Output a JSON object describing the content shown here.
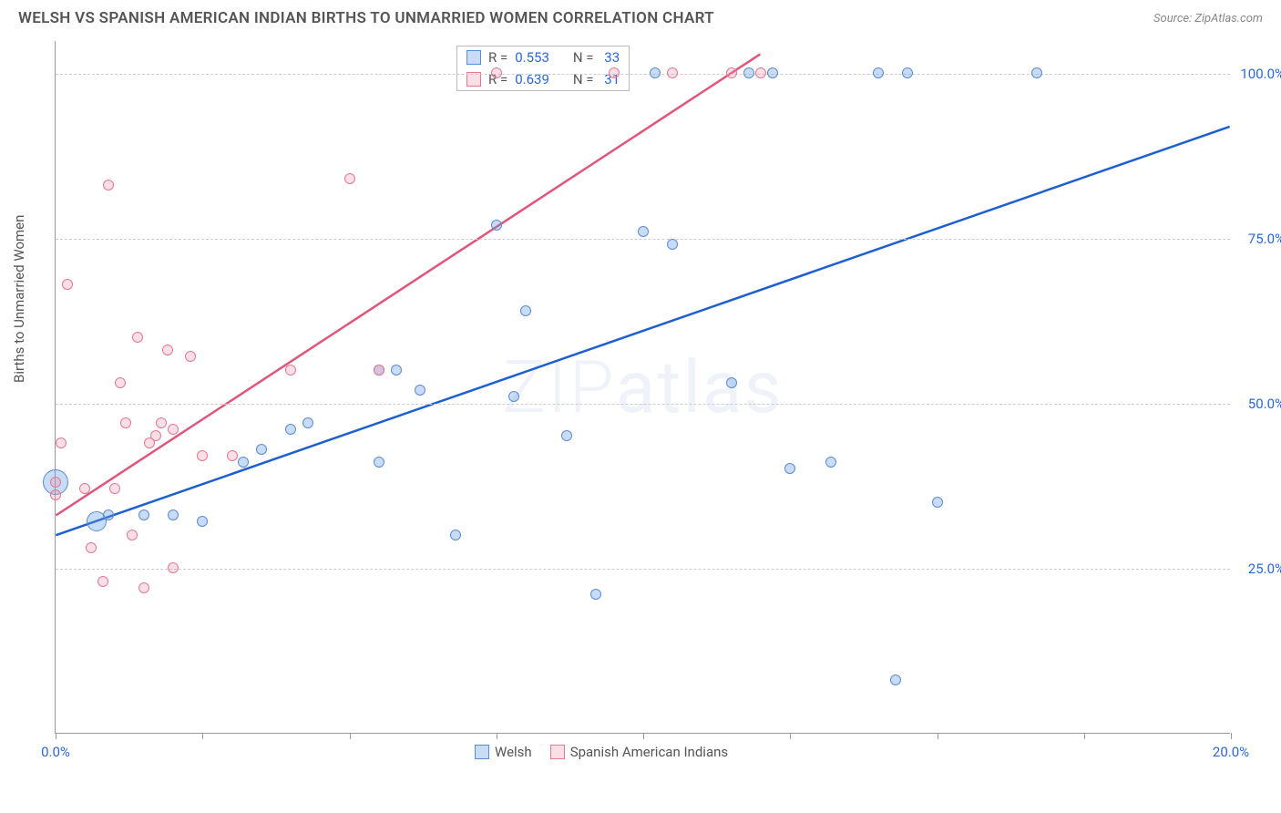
{
  "title": "WELSH VS SPANISH AMERICAN INDIAN BIRTHS TO UNMARRIED WOMEN CORRELATION CHART",
  "source": "Source: ZipAtlas.com",
  "y_axis_label": "Births to Unmarried Women",
  "watermark": "ZIPatlas",
  "chart": {
    "type": "scatter",
    "xlim": [
      0,
      20
    ],
    "ylim": [
      0,
      105
    ],
    "x_ticks": [
      0,
      2.5,
      5,
      7.5,
      10,
      12.5,
      15,
      17.5,
      20
    ],
    "x_tick_labels": {
      "0": "0.0%",
      "20": "20.0%"
    },
    "y_gridlines": [
      25,
      50,
      75,
      100
    ],
    "y_tick_labels": [
      "25.0%",
      "50.0%",
      "75.0%",
      "100.0%"
    ],
    "background": "#ffffff",
    "grid_color": "#cccccc"
  },
  "series": [
    {
      "name": "Welsh",
      "fill": "rgba(100,155,230,0.35)",
      "stroke": "#5a8cd0",
      "trend_color": "#1e5fd0",
      "R": "0.553",
      "N": "33",
      "trend": {
        "x1": 0,
        "y1": 30,
        "x2": 20,
        "y2": 92
      },
      "points": [
        {
          "x": 0.0,
          "y": 38,
          "r": 14
        },
        {
          "x": 0.7,
          "y": 32,
          "r": 11
        },
        {
          "x": 0.9,
          "y": 33,
          "r": 6
        },
        {
          "x": 1.5,
          "y": 33,
          "r": 6
        },
        {
          "x": 2.0,
          "y": 33,
          "r": 6
        },
        {
          "x": 2.5,
          "y": 32,
          "r": 6
        },
        {
          "x": 3.2,
          "y": 41,
          "r": 6
        },
        {
          "x": 3.5,
          "y": 43,
          "r": 6
        },
        {
          "x": 4.0,
          "y": 46,
          "r": 6
        },
        {
          "x": 4.3,
          "y": 47,
          "r": 6
        },
        {
          "x": 5.5,
          "y": 55,
          "r": 6
        },
        {
          "x": 5.8,
          "y": 55,
          "r": 6
        },
        {
          "x": 5.5,
          "y": 41,
          "r": 6
        },
        {
          "x": 6.2,
          "y": 52,
          "r": 6
        },
        {
          "x": 6.8,
          "y": 30,
          "r": 6
        },
        {
          "x": 7.5,
          "y": 77,
          "r": 6
        },
        {
          "x": 7.8,
          "y": 51,
          "r": 6
        },
        {
          "x": 8.0,
          "y": 64,
          "r": 6
        },
        {
          "x": 8.7,
          "y": 45,
          "r": 6
        },
        {
          "x": 9.2,
          "y": 21,
          "r": 6
        },
        {
          "x": 10.0,
          "y": 76,
          "r": 6
        },
        {
          "x": 10.2,
          "y": 100,
          "r": 6
        },
        {
          "x": 10.5,
          "y": 74,
          "r": 6
        },
        {
          "x": 11.5,
          "y": 53,
          "r": 6
        },
        {
          "x": 11.8,
          "y": 100,
          "r": 6
        },
        {
          "x": 12.2,
          "y": 100,
          "r": 6
        },
        {
          "x": 12.5,
          "y": 40,
          "r": 6
        },
        {
          "x": 13.2,
          "y": 41,
          "r": 6
        },
        {
          "x": 14.0,
          "y": 100,
          "r": 6
        },
        {
          "x": 14.5,
          "y": 100,
          "r": 6
        },
        {
          "x": 15.0,
          "y": 35,
          "r": 6
        },
        {
          "x": 14.3,
          "y": 8,
          "r": 6
        },
        {
          "x": 16.7,
          "y": 100,
          "r": 6
        }
      ]
    },
    {
      "name": "Spanish American Indians",
      "fill": "rgba(240,140,165,0.28)",
      "stroke": "#e07a95",
      "trend_color": "#e0557a",
      "R": "0.639",
      "N": "31",
      "trend": {
        "x1": 0,
        "y1": 33,
        "x2": 12,
        "y2": 103
      },
      "points": [
        {
          "x": 0.0,
          "y": 38,
          "r": 6
        },
        {
          "x": 0.0,
          "y": 36,
          "r": 6
        },
        {
          "x": 0.1,
          "y": 44,
          "r": 6
        },
        {
          "x": 0.2,
          "y": 68,
          "r": 6
        },
        {
          "x": 0.5,
          "y": 37,
          "r": 6
        },
        {
          "x": 0.6,
          "y": 28,
          "r": 6
        },
        {
          "x": 0.8,
          "y": 23,
          "r": 6
        },
        {
          "x": 0.9,
          "y": 83,
          "r": 6
        },
        {
          "x": 1.0,
          "y": 37,
          "r": 6
        },
        {
          "x": 1.1,
          "y": 53,
          "r": 6
        },
        {
          "x": 1.2,
          "y": 47,
          "r": 6
        },
        {
          "x": 1.3,
          "y": 30,
          "r": 6
        },
        {
          "x": 1.4,
          "y": 60,
          "r": 6
        },
        {
          "x": 1.5,
          "y": 22,
          "r": 6
        },
        {
          "x": 1.6,
          "y": 44,
          "r": 6
        },
        {
          "x": 1.7,
          "y": 45,
          "r": 6
        },
        {
          "x": 1.8,
          "y": 47,
          "r": 6
        },
        {
          "x": 1.9,
          "y": 58,
          "r": 6
        },
        {
          "x": 2.0,
          "y": 25,
          "r": 6
        },
        {
          "x": 2.0,
          "y": 46,
          "r": 6
        },
        {
          "x": 2.3,
          "y": 57,
          "r": 6
        },
        {
          "x": 2.5,
          "y": 42,
          "r": 6
        },
        {
          "x": 3.0,
          "y": 42,
          "r": 6
        },
        {
          "x": 4.0,
          "y": 55,
          "r": 6
        },
        {
          "x": 5.0,
          "y": 84,
          "r": 6
        },
        {
          "x": 5.5,
          "y": 55,
          "r": 6
        },
        {
          "x": 7.5,
          "y": 100,
          "r": 6
        },
        {
          "x": 9.5,
          "y": 100,
          "r": 6
        },
        {
          "x": 10.5,
          "y": 100,
          "r": 6
        },
        {
          "x": 11.5,
          "y": 100,
          "r": 6
        },
        {
          "x": 12.0,
          "y": 100,
          "r": 6
        }
      ]
    }
  ],
  "legend_top_labels": {
    "R": "R =",
    "N": "N ="
  },
  "legend_bottom": [
    "Welsh",
    "Spanish American Indians"
  ]
}
